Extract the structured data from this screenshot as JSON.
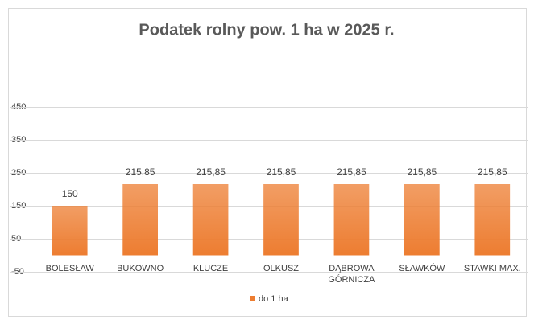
{
  "chart_data": {
    "type": "bar",
    "title": "Podatek rolny  pow. 1 ha w 2025 r.",
    "categories": [
      "BOLESŁAW",
      "BUKOWNO",
      "KLUCZE",
      "OLKUSZ",
      "DĄBROWA GÓRNICZA",
      "SŁAWKÓW",
      "STAWKI MAX."
    ],
    "series": [
      {
        "name": "do 1 ha",
        "color": "#ed7d31",
        "values": [
          150,
          215.85,
          215.85,
          215.85,
          215.85,
          215.85,
          215.85
        ],
        "value_labels": [
          "150",
          "215,85",
          "215,85",
          "215,85",
          "215,85",
          "215,85",
          "215,85"
        ]
      }
    ],
    "ylim": [
      -50,
      450
    ],
    "yticks": [
      -50,
      50,
      150,
      250,
      350,
      450
    ],
    "grid": true,
    "legend": "bottom"
  }
}
